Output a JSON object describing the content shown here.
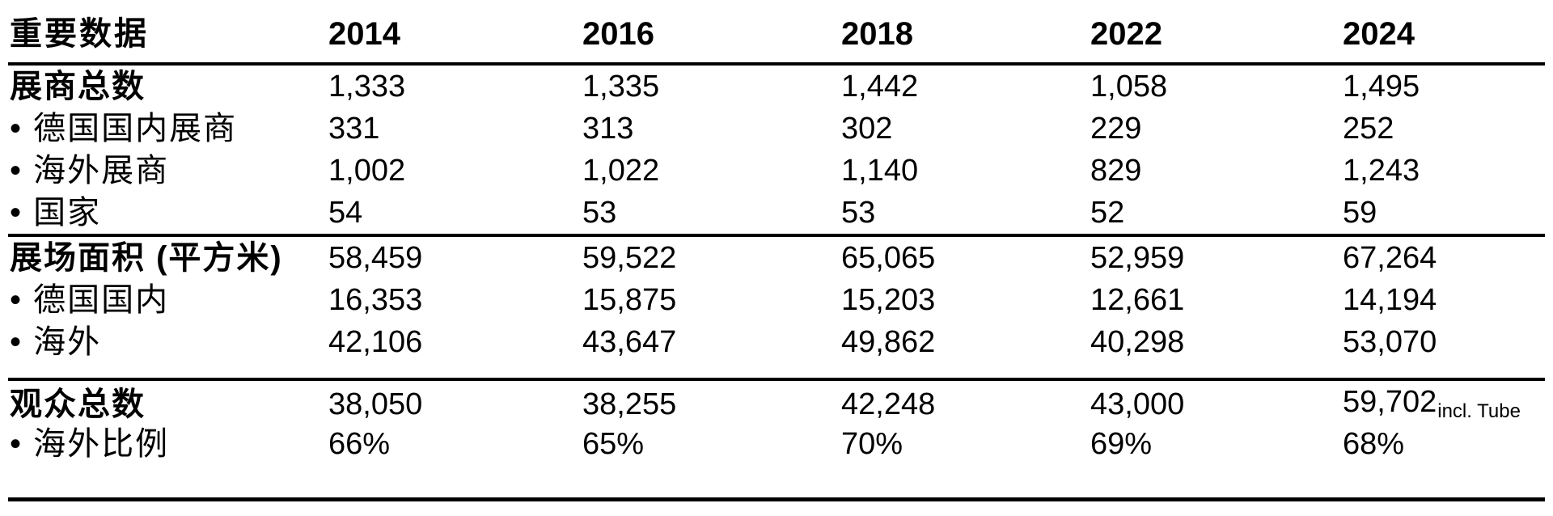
{
  "table": {
    "header": {
      "label": "重要数据",
      "years": [
        "2014",
        "2016",
        "2018",
        "2022",
        "2024"
      ]
    },
    "sections": [
      {
        "rows": [
          {
            "label": "展商总数",
            "bold": true,
            "values": [
              "1,333",
              "1,335",
              "1,442",
              "1,058",
              "1,495"
            ]
          },
          {
            "label": "• 德国国内展商",
            "bold": false,
            "values": [
              "331",
              "313",
              "302",
              "229",
              "252"
            ]
          },
          {
            "label": "• 海外展商",
            "bold": false,
            "values": [
              "1,002",
              "1,022",
              "1,140",
              "829",
              "1,243"
            ]
          },
          {
            "label": "• 国家",
            "bold": false,
            "values": [
              "54",
              "53",
              "53",
              "52",
              "59"
            ]
          }
        ]
      },
      {
        "rows": [
          {
            "label": "展场面积 (平方米)",
            "bold": true,
            "values": [
              "58,459",
              "59,522",
              "65,065",
              "52,959",
              "67,264"
            ]
          },
          {
            "label": "• 德国国内",
            "bold": false,
            "values": [
              "16,353",
              "15,875",
              "15,203",
              "12,661",
              "14,194"
            ]
          },
          {
            "label": "• 海外",
            "bold": false,
            "values": [
              "42,106",
              "43,647",
              "49,862",
              "40,298",
              "53,070"
            ]
          }
        ]
      },
      {
        "rows": [
          {
            "label": "观众总数",
            "bold": true,
            "values": [
              "38,050",
              "38,255",
              "42,248",
              "43,000",
              "59,702"
            ],
            "suffix": {
              "col": 4,
              "text": "incl. Tube"
            }
          },
          {
            "label": "• 海外比例",
            "bold": false,
            "values": [
              "66%",
              "65%",
              "70%",
              "69%",
              "68%"
            ]
          }
        ]
      }
    ]
  }
}
